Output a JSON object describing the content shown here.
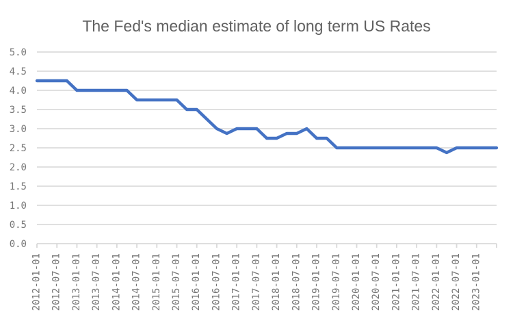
{
  "colors": {
    "background": "#FFFFFF",
    "line": "#4472C4",
    "grid": "#DBDBDB",
    "axis": "#D9D9D9",
    "tick_label": "#767676",
    "title": "#606060"
  },
  "chart_data": {
    "type": "line",
    "title": "The Fed's median estimate of long term US Rates",
    "xlabel": "",
    "ylabel": "",
    "ylim": [
      0.0,
      5.0
    ],
    "y_tick_step": 0.5,
    "grid": "horizontal",
    "legend": "none",
    "x_label_rotation": -90,
    "y_tick_labels": [
      "0.0",
      "0.5",
      "1.0",
      "1.5",
      "2.0",
      "2.5",
      "3.0",
      "3.5",
      "4.0",
      "4.5",
      "5.0"
    ],
    "x_tick_labels": [
      "2012-01-01",
      "2012-07-01",
      "2013-01-01",
      "2013-07-01",
      "2014-01-01",
      "2014-07-01",
      "2015-01-01",
      "2015-07-01",
      "2016-01-01",
      "2016-07-01",
      "2017-01-01",
      "2017-07-01",
      "2018-01-01",
      "2018-07-01",
      "2019-01-01",
      "2019-07-01",
      "2020-01-01",
      "2020-07-01",
      "2021-01-01",
      "2021-07-01",
      "2022-01-01",
      "2022-07-01",
      "2023-01-01"
    ],
    "x": [
      "2012-01-01",
      "2012-04-01",
      "2012-07-01",
      "2012-10-01",
      "2013-01-01",
      "2013-04-01",
      "2013-07-01",
      "2013-10-01",
      "2014-01-01",
      "2014-04-01",
      "2014-07-01",
      "2014-10-01",
      "2015-01-01",
      "2015-04-01",
      "2015-07-01",
      "2015-10-01",
      "2016-01-01",
      "2016-04-01",
      "2016-07-01",
      "2016-10-01",
      "2017-01-01",
      "2017-04-01",
      "2017-07-01",
      "2017-10-01",
      "2018-01-01",
      "2018-04-01",
      "2018-07-01",
      "2018-10-01",
      "2019-01-01",
      "2019-04-01",
      "2019-07-01",
      "2019-10-01",
      "2020-01-01",
      "2020-04-01",
      "2020-07-01",
      "2020-10-01",
      "2021-01-01",
      "2021-04-01",
      "2021-07-01",
      "2021-10-01",
      "2022-01-01",
      "2022-04-01",
      "2022-07-01",
      "2022-10-01",
      "2023-01-01",
      "2023-04-01",
      "2023-07-01"
    ],
    "values": [
      4.25,
      4.25,
      4.25,
      4.25,
      4.0,
      4.0,
      4.0,
      4.0,
      4.0,
      4.0,
      3.75,
      3.75,
      3.75,
      3.75,
      3.75,
      3.5,
      3.5,
      3.25,
      3.0,
      2.875,
      3.0,
      3.0,
      3.0,
      2.75,
      2.75,
      2.875,
      2.875,
      3.0,
      2.75,
      2.75,
      2.5,
      2.5,
      2.5,
      2.5,
      2.5,
      2.5,
      2.5,
      2.5,
      2.5,
      2.5,
      2.5,
      2.375,
      2.5,
      2.5,
      2.5,
      2.5,
      2.5
    ]
  }
}
